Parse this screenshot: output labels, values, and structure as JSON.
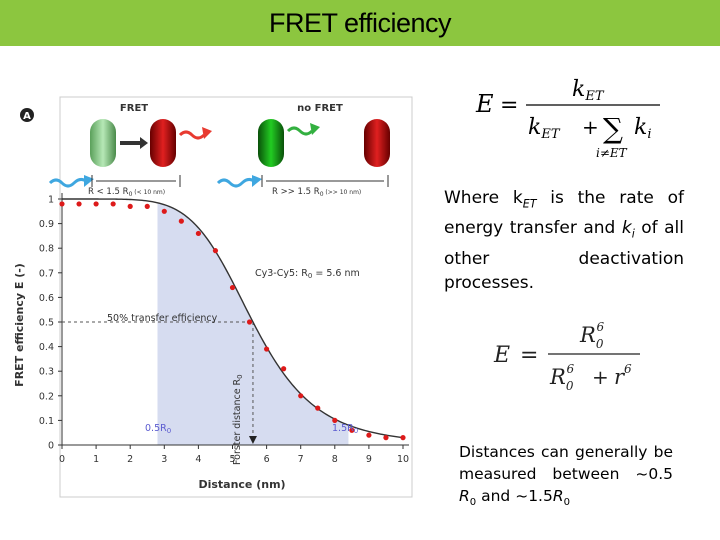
{
  "slide": {
    "title": "FRET efficiency"
  },
  "equations": {
    "e1": {
      "lhs": "E",
      "eq": "=",
      "num": "k",
      "num_sub": "ET",
      "den_k": "k",
      "den_sub": "ET",
      "plus": "+",
      "sum": "∑",
      "ki": "k",
      "ki_sub": "i",
      "sum_sub": "i≠ET"
    },
    "e2": {
      "lhs": "E",
      "eq": "=",
      "num": "R",
      "num_sub": "0",
      "num_sup": "6",
      "den_r": "R",
      "den_sub": "0",
      "den_sup": "6",
      "plus": "+",
      "r": "r",
      "r_sup": "6"
    }
  },
  "description": {
    "p1": "Where k",
    "p1_sub": "ET",
    "p2": " is the rate of energy transfer and ",
    "p3": "k",
    "p3_sub": "i",
    "p4": " of all other deactivation processes."
  },
  "note": {
    "p1": "Distances can generally be measured between ~0.5 ",
    "r1": "R",
    "r1_sub": "0",
    "p2": " and ~1.5",
    "r2": "R",
    "r2_sub": "0"
  },
  "figure": {
    "panel_label": "A",
    "fret_label": "FRET",
    "nofret_label": "no FRET",
    "range_left": "R < 1.5 R",
    "range_left_sub": "0",
    "range_left_small": " (< 10 nm)",
    "range_right": "R >> 1.5 R",
    "range_right_sub": "0",
    "range_right_small": " (>> 10 nm)",
    "annot_cy": "Cy3-Cy5: R",
    "annot_cy_sub": "0",
    "annot_cy_val": " = 5.6 nm",
    "annot_half": "50% transfer efficiency",
    "annot_forster": "Förster distance R",
    "annot_forster_sub": "0",
    "annot_05": "0.5R",
    "annot_05_sub": "0",
    "annot_15": "1.5R",
    "annot_15_sub": "0",
    "colors": {
      "curve": "#333333",
      "points": "#dd1a1a",
      "shade": "#d6dcf0",
      "label_blue": "#5b5bd0",
      "donor": "#8fd68f",
      "acceptor": "#e02020",
      "arrow_blue": "#3fa7e0",
      "arrow_red": "#e83a30",
      "arrow_green": "#33b040"
    }
  },
  "chart_data": {
    "type": "line",
    "title": "",
    "xlabel": "Distance (nm)",
    "ylabel": "FRET efficiency  E  (-)",
    "xlim": [
      0,
      10
    ],
    "ylim": [
      0,
      1
    ],
    "x_ticks": [
      "0",
      "1",
      "2",
      "3",
      "4",
      "5",
      "6",
      "7",
      "8",
      "9",
      "10"
    ],
    "y_ticks": [
      "0",
      "0.1",
      "0.2",
      "0.3",
      "0.4",
      "0.5",
      "0.6",
      "0.7",
      "0.8",
      "0.9",
      "1"
    ],
    "r0": 5.6,
    "shaded_range": [
      2.8,
      8.4
    ],
    "series": [
      {
        "name": "Cy3-Cy5",
        "x": [
          0.0,
          0.5,
          1.0,
          1.5,
          2.0,
          2.5,
          3.0,
          3.5,
          4.0,
          4.5,
          5.0,
          5.5,
          6.0,
          6.5,
          7.0,
          7.5,
          8.0,
          8.5,
          9.0,
          9.5,
          10.0
        ],
        "y": [
          0.98,
          0.98,
          0.98,
          0.98,
          0.97,
          0.97,
          0.95,
          0.91,
          0.86,
          0.79,
          0.64,
          0.5,
          0.39,
          0.31,
          0.2,
          0.15,
          0.1,
          0.06,
          0.04,
          0.03,
          0.03
        ]
      }
    ]
  }
}
